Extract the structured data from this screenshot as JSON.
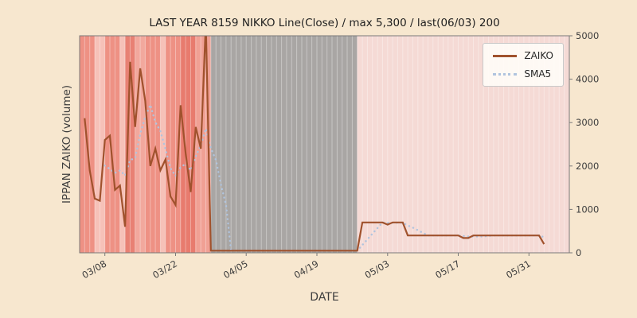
{
  "chart_data": {
    "type": "line",
    "title": "LAST YEAR 8159 NIKKO Line(Close) / max 5,300 / last(06/03) 200",
    "xlabel": "DATE",
    "ylabel": "IPPAN ZAIKO (volume)",
    "x_range": [
      -1,
      96
    ],
    "ylim": [
      0,
      5000
    ],
    "yticks": [
      0,
      1000,
      2000,
      3000,
      4000,
      5000
    ],
    "xticks": [
      "03/08",
      "03/22",
      "04/05",
      "04/19",
      "05/03",
      "05/17",
      "05/31"
    ],
    "legend": {
      "position": "upper-right"
    },
    "x": [
      "03/04",
      "03/05",
      "03/06",
      "03/07",
      "03/08",
      "03/09",
      "03/10",
      "03/11",
      "03/12",
      "03/13",
      "03/14",
      "03/15",
      "03/16",
      "03/17",
      "03/18",
      "03/19",
      "03/20",
      "03/21",
      "03/22",
      "03/23",
      "03/24",
      "03/25",
      "03/26",
      "03/27",
      "03/28",
      "03/29",
      "03/30",
      "03/31",
      "04/01",
      "04/02",
      "04/03",
      "04/04",
      "04/05",
      "04/06",
      "04/07",
      "04/08",
      "04/09",
      "04/10",
      "04/11",
      "04/12",
      "04/13",
      "04/14",
      "04/15",
      "04/16",
      "04/17",
      "04/18",
      "04/19",
      "04/20",
      "04/21",
      "04/22",
      "04/23",
      "04/24",
      "04/25",
      "04/26",
      "04/27",
      "04/28",
      "04/29",
      "04/30",
      "05/01",
      "05/02",
      "05/03",
      "05/04",
      "05/05",
      "05/06",
      "05/07",
      "05/08",
      "05/09",
      "05/10",
      "05/11",
      "05/12",
      "05/13",
      "05/14",
      "05/15",
      "05/16",
      "05/17",
      "05/18",
      "05/19",
      "05/20",
      "05/21",
      "05/22",
      "05/23",
      "05/24",
      "05/25",
      "05/26",
      "05/27",
      "05/28",
      "05/29",
      "05/30",
      "05/31",
      "06/01",
      "06/02",
      "06/03"
    ],
    "series": [
      {
        "name": "ZAIKO",
        "color": "#a0522d",
        "line_style": "solid",
        "values": [
          3100,
          1900,
          1250,
          1200,
          2600,
          2700,
          1450,
          1550,
          600,
          4400,
          2900,
          4250,
          3500,
          2000,
          2400,
          1900,
          2150,
          1300,
          1100,
          3400,
          2300,
          1400,
          2900,
          2400,
          5300,
          50,
          50,
          50,
          50,
          50,
          50,
          50,
          50,
          50,
          50,
          50,
          50,
          50,
          50,
          50,
          50,
          50,
          50,
          50,
          50,
          50,
          50,
          50,
          50,
          50,
          50,
          50,
          50,
          50,
          50,
          700,
          700,
          700,
          700,
          700,
          650,
          700,
          700,
          700,
          400,
          400,
          400,
          400,
          400,
          400,
          400,
          400,
          400,
          400,
          400,
          340,
          340,
          400,
          400,
          400,
          400,
          400,
          400,
          400,
          400,
          400,
          400,
          400,
          400,
          400,
          400,
          200
        ]
      },
      {
        "name": "SMA5",
        "color": "#b0c4de",
        "line_style": "dotted",
        "values": [
          null,
          null,
          null,
          null,
          2010,
          1930,
          1840,
          1900,
          1780,
          2140,
          2180,
          2740,
          3130,
          3410,
          3010,
          2810,
          2390,
          1950,
          1770,
          1970,
          2050,
          1900,
          2220,
          2480,
          2860,
          2410,
          2140,
          1570,
          1100,
          50,
          50,
          50,
          50,
          50,
          50,
          50,
          50,
          50,
          50,
          50,
          50,
          50,
          50,
          50,
          50,
          50,
          50,
          50,
          50,
          50,
          50,
          50,
          50,
          50,
          50,
          180,
          310,
          440,
          570,
          700,
          690,
          690,
          690,
          690,
          630,
          580,
          520,
          460,
          400,
          400,
          400,
          400,
          400,
          400,
          400,
          388,
          376,
          376,
          376,
          376,
          388,
          400,
          400,
          400,
          400,
          400,
          400,
          400,
          400,
          400,
          400,
          360
        ]
      }
    ],
    "bands": [
      {
        "from": "start",
        "to": "03/06",
        "color": "#ee9184"
      },
      {
        "from": "03/06",
        "to": "03/08",
        "color": "#f6c1b8"
      },
      {
        "from": "03/08",
        "to": "03/11",
        "color": "#ee9184"
      },
      {
        "from": "03/11",
        "to": "03/12",
        "color": "#f6c1b8"
      },
      {
        "from": "03/12",
        "to": "03/14",
        "color": "#e88174"
      },
      {
        "from": "03/14",
        "to": "03/16",
        "color": "#f2a89d"
      },
      {
        "from": "03/16",
        "to": "03/19",
        "color": "#ee9184"
      },
      {
        "from": "03/19",
        "to": "03/20",
        "color": "#f6c1b8"
      },
      {
        "from": "03/20",
        "to": "03/23",
        "color": "#ee9184"
      },
      {
        "from": "03/23",
        "to": "03/26",
        "color": "#e87b6e"
      },
      {
        "from": "03/26",
        "to": "03/29",
        "color": "#f0a094"
      },
      {
        "from": "03/29",
        "to": "04/27",
        "color": "#a9a6a4"
      },
      {
        "from": "04/27",
        "to": "end",
        "color": "#f5dad5"
      }
    ],
    "colors": {
      "figure_bg": "#f7e7cf",
      "plot_bg": "#f5dad5",
      "day_stripe": "rgba(255,255,255,0.35)",
      "spine": "#7a7a7a",
      "tick_text": "#3d3d3d",
      "title_text": "#1f1f1f"
    }
  }
}
